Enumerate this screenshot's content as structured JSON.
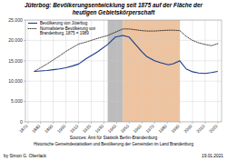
{
  "chart_data": {
    "type": "line",
    "title": "Jüterbog: Bevölkerungsentwicklung seit 1875 auf der Fläche der",
    "subtitle": "heutigen Gebietskörperschaft",
    "x": [
      1875,
      1880,
      1885,
      1890,
      1895,
      1900,
      1905,
      1910,
      1916,
      1925,
      1933,
      1939,
      1945,
      1950,
      1955,
      1960,
      1964,
      1970,
      1975,
      1981,
      1985,
      1990,
      1995,
      2000,
      2005,
      2010,
      2015,
      2020
    ],
    "series": [
      {
        "name": "Bevölkerung von Jüterbog",
        "color": "#1a3a8a",
        "line_style": "solid",
        "values": [
          12400,
          12500,
          12600,
          12800,
          13000,
          13300,
          13700,
          14200,
          15500,
          17200,
          19000,
          20800,
          21200,
          20800,
          19000,
          17200,
          16000,
          15000,
          14500,
          14000,
          14300,
          15000,
          13000,
          12300,
          12000,
          11900,
          12100,
          12400
        ]
      },
      {
        "name": "Normalisierte Bevölkerung von\nBrandenburg, 1875 = 1989",
        "color": "#111111",
        "line_style": "dotted",
        "values": [
          12400,
          13300,
          14200,
          15200,
          16200,
          17300,
          18200,
          19100,
          19600,
          20500,
          21200,
          22000,
          22800,
          22800,
          22600,
          22400,
          22300,
          22300,
          22400,
          22500,
          22500,
          22400,
          21000,
          20000,
          19400,
          19000,
          18700,
          19200
        ]
      }
    ],
    "spans": [
      {
        "start": 1933,
        "end": 1945,
        "color": "#b0b0b0"
      },
      {
        "start": 1945,
        "end": 1990,
        "color": "#e8b080"
      }
    ],
    "xlim": [
      1868,
      2023
    ],
    "xticks": [
      1870,
      1880,
      1890,
      1900,
      1910,
      1920,
      1930,
      1940,
      1950,
      1960,
      1970,
      1980,
      1990,
      2000,
      2010,
      2020
    ],
    "ylim": [
      0,
      25000
    ],
    "yticks": [
      0,
      {
        "value": 5000,
        "label": "5.000"
      },
      {
        "value": 10000,
        "label": "10.000"
      },
      {
        "value": 15000,
        "label": "15.000"
      },
      {
        "value": 20000,
        "label": "20.000"
      },
      {
        "value": 25000,
        "label": "25.000"
      }
    ],
    "grid": true,
    "legend": "upper left",
    "annotations": [
      "Sources: Amt für Statistik Berlin-Brandenburg",
      "Historische Gemeindestatistiken und Bevölkerung der Gemeinden im Land Brandenburg",
      "by Simon G. Oberlack",
      "19.01.2021"
    ]
  }
}
